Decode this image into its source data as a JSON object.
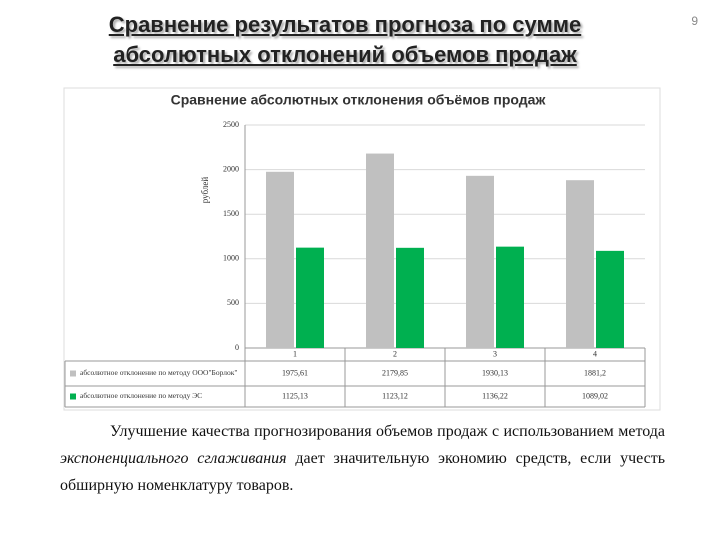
{
  "slide": {
    "title": "Сравнение результатов прогноза по сумме абсолютных отклонений объемов продаж",
    "page_number": "9",
    "paragraph": {
      "before": "Улучшение качества прогнозирования объемов продаж с использованием метода ",
      "emphasis": "экспоненциального сглаживания",
      "after": " дает значительную экономию средств, если учесть обширную номенклатуру товаров."
    }
  },
  "chart_data": {
    "type": "bar",
    "title": "Сравнение абсолютных отклонения объёмов продаж",
    "y_label": "рублей",
    "categories": [
      "1",
      "2",
      "3",
      "4"
    ],
    "series": [
      {
        "name": "абсолютное отклонение по методу ООО\"Борлок\"",
        "color": "#c0c0c0",
        "values": [
          1975.61,
          2179.85,
          1930.13,
          1881.2
        ],
        "value_labels": [
          "1975,61",
          "2179,85",
          "1930,13",
          "1881,2"
        ]
      },
      {
        "name": "абсолютное отклонение по методу ЭС",
        "color": "#00b050",
        "values": [
          1125.13,
          1123.12,
          1136.22,
          1089.02
        ],
        "value_labels": [
          "1125,13",
          "1123,12",
          "1136,22",
          "1089,02"
        ]
      }
    ],
    "ylim": [
      0,
      2500
    ],
    "yticks": [
      0,
      500,
      1000,
      1500,
      2000,
      2500
    ],
    "grid": true
  }
}
